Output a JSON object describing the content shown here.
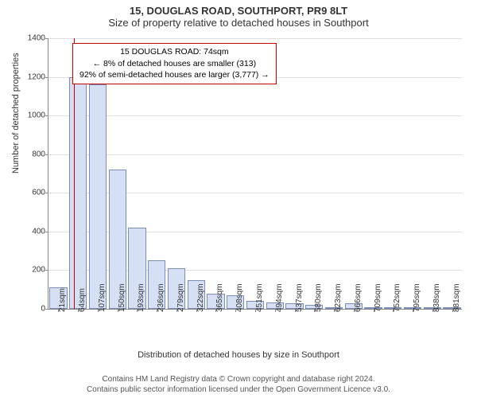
{
  "header": {
    "address": "15, DOUGLAS ROAD, SOUTHPORT, PR9 8LT",
    "subtitle": "Size of property relative to detached houses in Southport"
  },
  "axes": {
    "ylabel": "Number of detached properties",
    "xlabel": "Distribution of detached houses by size in Southport",
    "ymax": 1400,
    "ytick_step": 200,
    "grid_color": "#e0e0e0",
    "axis_color": "#888888",
    "tick_fontsize": 10,
    "label_fontsize": 11
  },
  "chart": {
    "type": "histogram",
    "bar_fill": "#d6e0f5",
    "bar_border": "#7a8db8",
    "background": "#ffffff",
    "x_labels": [
      "21sqm",
      "64sqm",
      "107sqm",
      "150sqm",
      "193sqm",
      "236sqm",
      "279sqm",
      "322sqm",
      "365sqm",
      "408sqm",
      "451sqm",
      "494sqm",
      "537sqm",
      "580sqm",
      "623sqm",
      "666sqm",
      "709sqm",
      "752sqm",
      "795sqm",
      "838sqm",
      "881sqm"
    ],
    "values": [
      110,
      1200,
      1160,
      720,
      420,
      250,
      210,
      150,
      80,
      70,
      40,
      35,
      30,
      20,
      10,
      30,
      5,
      5,
      4,
      3,
      2
    ]
  },
  "marker": {
    "position_sqm": 74,
    "line_color": "#cc0000",
    "box_border": "#cc0000",
    "box_bg": "#ffffff",
    "lines": {
      "l1": "15 DOUGLAS ROAD: 74sqm",
      "l2": "← 8% of detached houses are smaller (313)",
      "l3": "92% of semi-detached houses are larger (3,777) →"
    }
  },
  "footer": {
    "l1": "Contains HM Land Registry data © Crown copyright and database right 2024.",
    "l2": "Contains public sector information licensed under the Open Government Licence v3.0."
  }
}
